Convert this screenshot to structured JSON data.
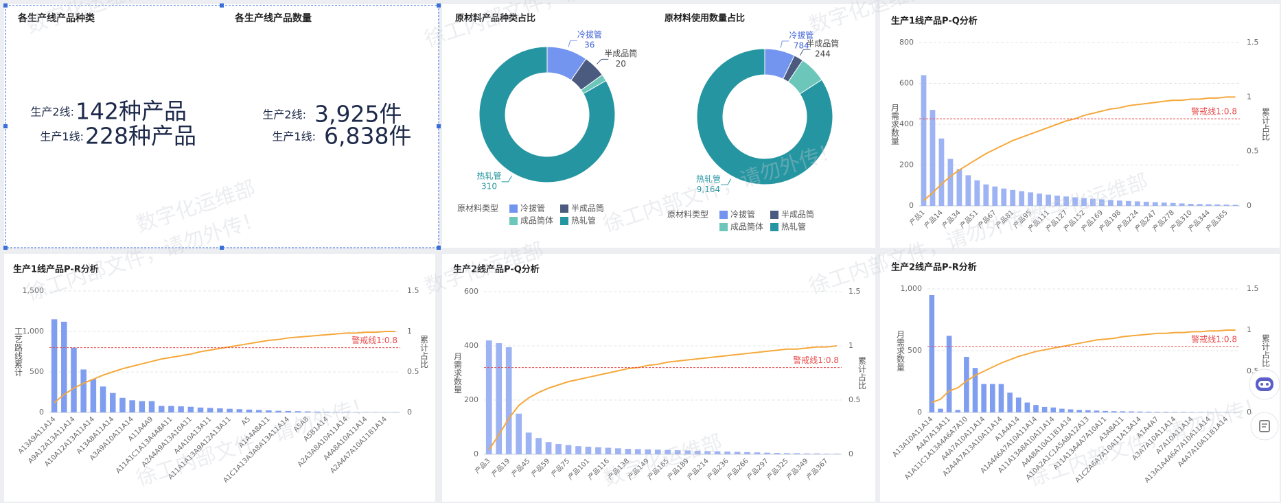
{
  "watermark": [
    "徐工内部文件，请勿外传！",
    "数字化运维部"
  ],
  "stats": [
    {
      "title": "各生产线产品种类",
      "rows": [
        {
          "label": "生产2线:",
          "value": "142种产品"
        },
        {
          "label": "生产1线:",
          "value": "228种产品"
        }
      ]
    },
    {
      "title": "各生产线产品数量",
      "rows": [
        {
          "label": "生产2线:",
          "value": "3,925件"
        },
        {
          "label": "生产1线:",
          "value": "6,838件"
        }
      ]
    }
  ],
  "chart_data": [
    {
      "type": "pie",
      "donut": true,
      "title": "原材料产品种类占比",
      "legend_title": "原材料类型",
      "categories": [
        "冷拔管",
        "半成品筒",
        "成品筒体",
        "热轧管"
      ],
      "values": [
        36,
        20,
        6,
        310
      ],
      "value_labels": [
        "36",
        "20",
        null,
        "310"
      ],
      "colors": [
        "#7394ef",
        "#4b5b7f",
        "#6cc6ba",
        "#2596a1"
      ]
    },
    {
      "type": "pie",
      "donut": true,
      "title": "原材料使用数量占比",
      "legend_title": "原材料类型",
      "categories": [
        "冷拔管",
        "半成品筒",
        "成品筒体",
        "热轧管"
      ],
      "values": [
        784,
        244,
        700,
        9164
      ],
      "value_labels": [
        "784",
        "244",
        null,
        "9,164"
      ],
      "colors": [
        "#7394ef",
        "#4b5b7f",
        "#6cc6ba",
        "#2596a1"
      ]
    },
    {
      "type": "bar",
      "title": "生产1线产品P-Q分析",
      "ylabel": "月需求数量",
      "y2label": "累计占比",
      "grid": true,
      "categories": [
        "产品1",
        null,
        "产品14",
        null,
        "产品34",
        null,
        "产品51",
        null,
        "产品67",
        null,
        "产品81",
        null,
        "产品95",
        null,
        "产品111",
        null,
        "产品127",
        null,
        "产品152",
        null,
        "产品169",
        null,
        "产品198",
        null,
        "产品224",
        null,
        "产品247",
        null,
        "产品278",
        null,
        "产品310",
        null,
        "产品344",
        null,
        "产品365",
        null
      ],
      "ylim": [
        0,
        800
      ],
      "yticks": [
        0,
        200,
        400,
        600,
        800
      ],
      "y2lim": [
        0,
        1.5
      ],
      "y2ticks": [
        0,
        0.5,
        1,
        1.5
      ],
      "series": [
        {
          "type": "bar",
          "color": "#9db3f3",
          "values": [
            640,
            470,
            330,
            230,
            180,
            150,
            125,
            105,
            95,
            85,
            78,
            72,
            66,
            60,
            55,
            50,
            46,
            42,
            38,
            35,
            32,
            29,
            26,
            24,
            22,
            20,
            18,
            16,
            14,
            12,
            10,
            9,
            8,
            7,
            6,
            5
          ]
        },
        {
          "type": "line",
          "axis": "y2",
          "color": "#f5a83a",
          "values": [
            0.05,
            0.12,
            0.2,
            0.27,
            0.33,
            0.38,
            0.43,
            0.48,
            0.52,
            0.56,
            0.6,
            0.63,
            0.66,
            0.69,
            0.72,
            0.75,
            0.78,
            0.8,
            0.83,
            0.85,
            0.87,
            0.89,
            0.9,
            0.92,
            0.93,
            0.94,
            0.95,
            0.96,
            0.97,
            0.97,
            0.98,
            0.98,
            0.99,
            0.99,
            1,
            1
          ]
        }
      ],
      "reference_line": {
        "axis": "y2",
        "value": 0.8,
        "label": "警戒线1:0.8",
        "color": "#e84a4a"
      }
    },
    {
      "type": "bar",
      "title": "生产1线产品P-R分析",
      "ylabel": "工艺路线累计",
      "y2label": "累计占比",
      "grid": true,
      "categories": [
        "A13A9A11A14",
        null,
        "A9A12A13A11A14",
        null,
        "A10A12A13A11A14",
        null,
        "A13A8A11A14",
        null,
        "A3A9A10A11A14",
        null,
        "A11A4A9",
        null,
        "A11A1C1A13A4A8A11",
        null,
        "A2A4A9A13A10A11",
        null,
        "A4A10A13A11",
        null,
        "A11A1A13A9A12A13A11",
        null,
        "A5",
        null,
        "A1A4A8A11",
        null,
        "A1C1A13A3A8A13A11A14",
        null,
        "A5A8",
        null,
        "A5B1A14",
        null,
        "A2A3A8A10A11A14",
        null,
        "A4A8A10A11A14",
        null,
        "A2A4A7A10A11B1A14",
        null
      ],
      "ylim": [
        0,
        1500
      ],
      "yticks": [
        0,
        500,
        {
          "value": 1000,
          "label": "1,000"
        },
        {
          "value": 1500,
          "label": "1,500"
        }
      ],
      "y2lim": [
        0,
        1.5
      ],
      "y2ticks": [
        0,
        0.5,
        1,
        1.5
      ],
      "series": [
        {
          "type": "bar",
          "color": "#7f9ef0",
          "values": [
            1150,
            1120,
            800,
            530,
            410,
            320,
            240,
            180,
            150,
            140,
            140,
            80,
            80,
            75,
            70,
            60,
            55,
            50,
            45,
            40,
            35,
            30,
            25,
            20,
            18,
            15,
            12,
            10,
            8,
            6,
            5,
            4,
            3,
            3,
            2,
            2
          ]
        },
        {
          "type": "line",
          "axis": "y2",
          "color": "#f5a83a",
          "values": [
            0.12,
            0.22,
            0.3,
            0.36,
            0.41,
            0.46,
            0.5,
            0.54,
            0.57,
            0.6,
            0.63,
            0.66,
            0.68,
            0.7,
            0.72,
            0.75,
            0.77,
            0.79,
            0.81,
            0.83,
            0.85,
            0.87,
            0.89,
            0.9,
            0.92,
            0.93,
            0.94,
            0.95,
            0.96,
            0.97,
            0.98,
            0.98,
            0.99,
            0.99,
            1,
            1
          ]
        }
      ],
      "reference_line": {
        "axis": "y2",
        "value": 0.8,
        "label": "警戒线1:0.8",
        "color": "#e84a4a"
      }
    },
    {
      "type": "bar",
      "title": "生产2线产品P-Q分析",
      "ylabel": "月需求数量",
      "y2label": "累计占比",
      "grid": true,
      "categories": [
        "产品3",
        null,
        "产品19",
        null,
        "产品45",
        null,
        "产品59",
        null,
        "产品75",
        null,
        "产品101",
        null,
        "产品116",
        null,
        "产品138",
        null,
        "产品149",
        null,
        "产品165",
        null,
        "产品189",
        null,
        "产品214",
        null,
        "产品236",
        null,
        "产品266",
        null,
        "产品297",
        null,
        "产品325",
        null,
        "产品349",
        null,
        "产品367",
        null
      ],
      "ylim": [
        0,
        600
      ],
      "yticks": [
        0,
        200,
        400,
        600
      ],
      "y2lim": [
        0,
        1.5
      ],
      "y2ticks": [
        0,
        0.5,
        1,
        1.5
      ],
      "series": [
        {
          "type": "bar",
          "color": "#9db3f3",
          "values": [
            420,
            410,
            395,
            150,
            80,
            60,
            45,
            38,
            34,
            30,
            28,
            26,
            24,
            22,
            20,
            19,
            18,
            17,
            16,
            15,
            14,
            13,
            12,
            11,
            10,
            9,
            8,
            7,
            6,
            5,
            4,
            4,
            3,
            3,
            2,
            2
          ]
        },
        {
          "type": "line",
          "axis": "y2",
          "color": "#f5a83a",
          "values": [
            0.04,
            0.18,
            0.33,
            0.45,
            0.52,
            0.57,
            0.61,
            0.64,
            0.67,
            0.69,
            0.71,
            0.73,
            0.75,
            0.77,
            0.79,
            0.8,
            0.82,
            0.83,
            0.85,
            0.86,
            0.87,
            0.88,
            0.89,
            0.9,
            0.91,
            0.92,
            0.93,
            0.94,
            0.95,
            0.96,
            0.97,
            0.97,
            0.98,
            0.99,
            0.99,
            1
          ]
        }
      ],
      "reference_line": {
        "axis": "y2",
        "value": 0.8,
        "label": "警戒线1:0.8",
        "color": "#e84a4a"
      }
    },
    {
      "type": "bar",
      "title": "生产2线产品P-R分析",
      "ylabel": "月需求数量",
      "y2label": "累计占比",
      "grid": true,
      "categories": [
        "A13A10A11A14",
        null,
        "A4A7A13A11",
        null,
        "A1A11C1A13A4A6A7A10",
        null,
        "A4A7A10A11A14",
        null,
        "A2A4A7A13A10A11A14",
        null,
        "A1A4A14",
        null,
        "A1A4A6A7A10A11A14",
        null,
        "A11A13A8A10A11A14",
        null,
        "A4A8A10A11B1A14",
        null,
        "A10A2A1C1A5A8A12A13",
        null,
        "A11A13A4A7A10A11",
        null,
        "A3A8A11",
        null,
        "A1C2A6A7A10A11A13A14",
        null,
        "A1A4A7",
        null,
        "A3A7A10A11A14",
        null,
        "A7A10A11A14",
        null,
        "A13A1A4A6A7A10A11A14",
        null,
        "A4A7A10A11B1A14",
        null
      ],
      "ylim": [
        0,
        1000
      ],
      "yticks": [
        0,
        500,
        {
          "value": 1000,
          "label": "1,000"
        }
      ],
      "y2lim": [
        0,
        1.5
      ],
      "y2ticks": [
        0,
        0.5,
        1,
        1.5
      ],
      "series": [
        {
          "type": "bar",
          "color": "#7f9ef0",
          "values": [
            950,
            30,
            620,
            20,
            450,
            360,
            230,
            230,
            230,
            160,
            120,
            80,
            60,
            45,
            40,
            30,
            25,
            20,
            18,
            15,
            12,
            10,
            9,
            8,
            7,
            6,
            5,
            5,
            4,
            4,
            3,
            3,
            2,
            2,
            2,
            1
          ]
        },
        {
          "type": "line",
          "axis": "y2",
          "color": "#f5a83a",
          "values": [
            0.12,
            0.16,
            0.26,
            0.3,
            0.38,
            0.45,
            0.5,
            0.55,
            0.6,
            0.64,
            0.68,
            0.71,
            0.74,
            0.76,
            0.78,
            0.8,
            0.82,
            0.84,
            0.86,
            0.88,
            0.89,
            0.9,
            0.92,
            0.93,
            0.94,
            0.95,
            0.96,
            0.96,
            0.97,
            0.97,
            0.98,
            0.98,
            0.99,
            0.99,
            1,
            1
          ]
        }
      ],
      "reference_line": {
        "axis": "y2",
        "value": 0.8,
        "label": "警戒线1:0.8",
        "color": "#e84a4a"
      }
    }
  ]
}
